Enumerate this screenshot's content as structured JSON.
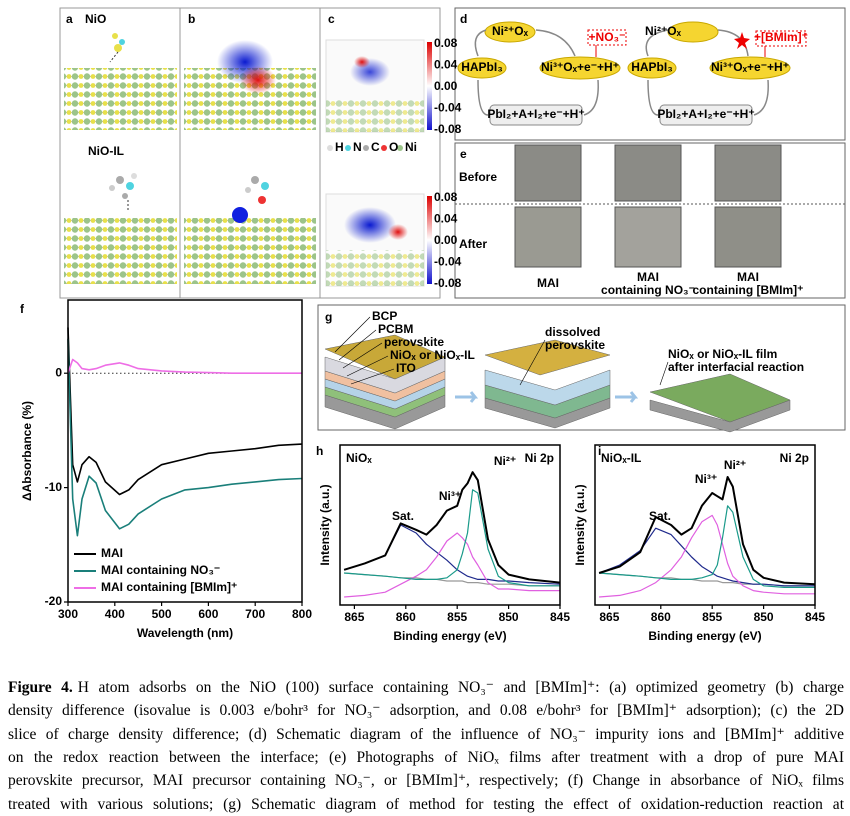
{
  "panels": {
    "a": {
      "letter": "a",
      "top": "NiO",
      "bottom": "NiO-IL"
    },
    "b": {
      "letter": "b"
    },
    "c": {
      "letter": "c",
      "colorbar_top": [
        "0.08",
        "0.04",
        "0.00",
        "-0.04",
        "-0.08"
      ],
      "colorbar_bottom": [
        "0.08",
        "0.04",
        "0.00",
        "-0.04",
        "-0.08"
      ],
      "elements": [
        "H",
        "N",
        "C",
        "O",
        "Ni"
      ]
    },
    "d": {
      "letter": "d",
      "left": {
        "top": "Ni²⁺Oₓ",
        "reactant": "HAPbI₃",
        "product": "Ni³⁺Oₓ+e⁻+H⁺",
        "byproduct": "PbI₂+A+I₂+e⁻+H⁺",
        "ion": "+NO₃⁻"
      },
      "right": {
        "top": "Ni²⁺Oₓ",
        "reactant": "HAPbI₃",
        "product": "Ni³⁺Oₓ+e⁻+H⁺",
        "byproduct": "PbI₂+A+I₂+e⁻+H⁺",
        "ion": "+[BMIm]⁺"
      }
    },
    "e": {
      "letter": "e",
      "rows": [
        "Before",
        "After"
      ],
      "columns": [
        [
          "MAI"
        ],
        [
          "MAI",
          "containing NO₃⁻"
        ],
        [
          "MAI",
          "containing [BMIm]⁺"
        ]
      ]
    },
    "g": {
      "letter": "g",
      "layers": [
        "BCP",
        "PCBM",
        "perovskite",
        "NiOₓ or NiOₓ-IL",
        "ITO"
      ],
      "middle": [
        "dissolved",
        "perovskite"
      ],
      "right": [
        "NiOₓ or NiOₓ-IL film",
        "after interfacial reaction"
      ]
    }
  },
  "chart_data": [
    {
      "type": "line",
      "panel": "f",
      "xlabel": "Wavelength (nm)",
      "ylabel": "ΔAbsorbance (%)",
      "x": [
        300,
        310,
        320,
        330,
        345,
        360,
        380,
        410,
        430,
        450,
        500,
        550,
        600,
        650,
        700,
        750,
        800
      ],
      "series": [
        {
          "name": "MAI",
          "color": "#000000",
          "values": [
            4,
            -8,
            -9.5,
            -8,
            -7.3,
            -7.8,
            -9.5,
            -10.6,
            -10.2,
            -9.3,
            -8,
            -7.5,
            -7,
            -6.8,
            -6.6,
            -6.3,
            -6.2
          ]
        },
        {
          "name": "MAI containing NO₃⁻",
          "color": "#1a7f7a",
          "values": [
            3,
            -11,
            -14.2,
            -11,
            -9,
            -9.6,
            -12,
            -13.6,
            -13.2,
            -12.3,
            -11,
            -10.2,
            -10,
            -9.7,
            -9.5,
            -9.3,
            -9.2
          ]
        },
        {
          "name": "MAI containing [BMIm]⁺",
          "color": "#ee6ee6",
          "values": [
            0,
            1.2,
            0.9,
            0.4,
            0.3,
            0.4,
            0.7,
            0.9,
            0.7,
            0.4,
            0.2,
            0.1,
            0.05,
            0,
            0,
            0,
            0
          ]
        }
      ],
      "xlim": [
        300,
        800
      ],
      "ylim": [
        -20,
        6.4
      ],
      "xticks": [
        300,
        400,
        500,
        600,
        700,
        800
      ],
      "yticks": [
        -20,
        -10,
        0
      ],
      "hline": 0,
      "legend": "lower left"
    },
    {
      "type": "line",
      "panel": "h",
      "label": "NiOₓ",
      "core_level": "Ni 2p",
      "xlabel": "Binding energy (eV)",
      "ylabel": "Intensity (a.u.)",
      "annotations": [
        "Sat.",
        "Ni³⁺",
        "Ni²⁺"
      ],
      "x": [
        866,
        864,
        862,
        860.5,
        859,
        858,
        857,
        856,
        855,
        854.5,
        854,
        853.5,
        853,
        852,
        851,
        850,
        848,
        845
      ],
      "series": [
        {
          "color": "#999999",
          "values": [
            20,
            19,
            18,
            17,
            17,
            16,
            16,
            15,
            15,
            15,
            14,
            14,
            14,
            13,
            13,
            13,
            12,
            12
          ]
        },
        {
          "color": "#1f2a8c",
          "values": [
            22,
            26,
            31,
            50,
            45,
            38,
            33,
            28,
            22,
            20,
            18,
            17,
            16,
            16,
            15,
            15,
            14,
            13
          ]
        },
        {
          "color": "#e060e0",
          "values": [
            5,
            6,
            8,
            13,
            18,
            22,
            30,
            40,
            45,
            42,
            38,
            30,
            25,
            14,
            10,
            10,
            9,
            9
          ]
        },
        {
          "color": "#1a9a8a",
          "values": [
            20,
            19,
            18,
            17,
            16,
            16,
            16,
            17,
            22,
            32,
            45,
            72,
            70,
            35,
            18,
            14,
            12,
            12
          ]
        },
        {
          "color": "#000000",
          "values": [
            22,
            26,
            31,
            51,
            47,
            44,
            50,
            59,
            62,
            72,
            76,
            83,
            78,
            41,
            25,
            19,
            16,
            14
          ]
        }
      ],
      "xlim": [
        866.4,
        845
      ],
      "ylim": [
        0,
        100
      ],
      "xticks": [
        865,
        860,
        855,
        850,
        845
      ]
    },
    {
      "type": "line",
      "panel": "i",
      "label": "NiOₓ-IL",
      "core_level": "Ni 2p",
      "xlabel": "Binding energy (eV)",
      "ylabel": "Intensity (a.u.)",
      "annotations": [
        "Sat.",
        "Ni³⁺",
        "Ni²⁺"
      ],
      "x": [
        866,
        864,
        862,
        860.5,
        859,
        858,
        857,
        856,
        855,
        854.5,
        854,
        853.5,
        853,
        852,
        851,
        850,
        848,
        845
      ],
      "series": [
        {
          "color": "#999999",
          "values": [
            20,
            19,
            18,
            17,
            17,
            16,
            16,
            15,
            15,
            15,
            14,
            14,
            14,
            13,
            13,
            13,
            12,
            12
          ]
        },
        {
          "color": "#1f2a8c",
          "values": [
            20,
            25,
            34,
            48,
            44,
            37,
            30,
            24,
            20,
            18,
            17,
            16,
            15,
            14,
            13,
            13,
            12,
            12
          ]
        },
        {
          "color": "#e060e0",
          "values": [
            5,
            6,
            9,
            14,
            22,
            30,
            42,
            52,
            56,
            50,
            38,
            26,
            18,
            12,
            9,
            8,
            7,
            7
          ]
        },
        {
          "color": "#1a9a8a",
          "values": [
            20,
            19,
            18,
            17,
            16,
            16,
            16,
            17,
            19,
            25,
            42,
            62,
            58,
            30,
            16,
            12,
            11,
            11
          ]
        },
        {
          "color": "#000000",
          "values": [
            20,
            24,
            33,
            55,
            50,
            44,
            48,
            62,
            70,
            68,
            66,
            80,
            74,
            38,
            22,
            17,
            14,
            13
          ]
        }
      ],
      "xlim": [
        866.4,
        845
      ],
      "ylim": [
        0,
        100
      ],
      "xticks": [
        865,
        860,
        855,
        850,
        845
      ]
    }
  ],
  "caption": {
    "label": "Figure 4.",
    "lines": [
      "H atom adsorbs on the NiO (100) surface containing NO₃⁻ and [BMIm]⁺: (a) optimized geometry (b) charge",
      "density difference (isovalue is 0.003 e/bohr³ for NO₃⁻ adsorption, and 0.08 e/bohr³ for [BMIm]⁺ adsorption); (c) the 2D",
      "slice of charge density difference; (d) Schematic diagram of the influence of NO₃⁻ impurity ions and [BMIm]⁺ additive",
      "on the redox reaction between the interface; (e) Photographs of NiOₓ films after treatment with a drop of pure MAI",
      "perovskite precursor, MAI precursor containing NO₃⁻, or [BMIm]⁺, respectively; (f) Change in absorbance of NiOₓ films",
      "treated with various solutions; (g) Schematic diagram of method for testing the effect of oxidation-reduction reaction at"
    ]
  }
}
